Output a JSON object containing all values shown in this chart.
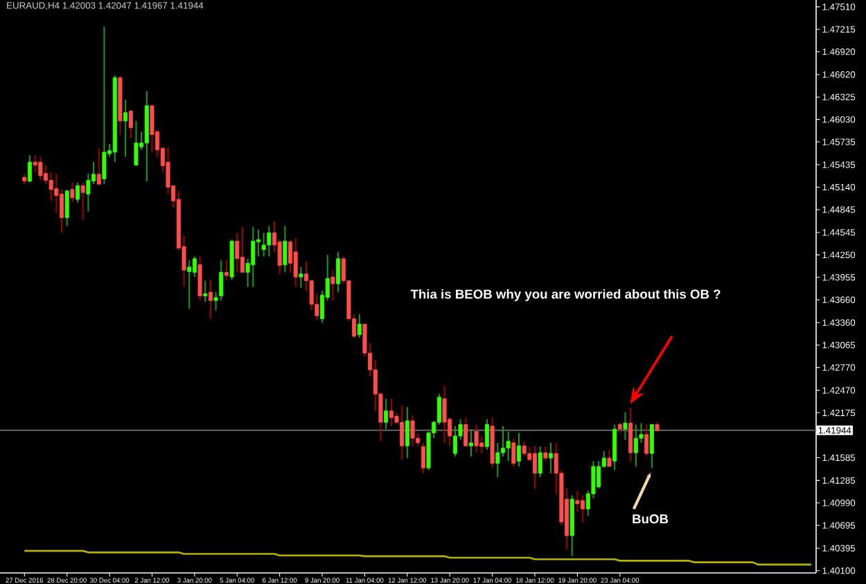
{
  "chart_data": {
    "type": "candlestick",
    "title": "EURAUD,H4  1.42003 1.42047 1.41967 1.41944",
    "categories": [
      "27 Dec 2016",
      null,
      null,
      null,
      null,
      null,
      null,
      null,
      "28 Dec 20:00",
      null,
      null,
      null,
      null,
      null,
      null,
      null,
      "30 Dec 04:00",
      null,
      null,
      null,
      null,
      null,
      null,
      null,
      "2 Jan 12:00",
      null,
      null,
      null,
      null,
      null,
      null,
      null,
      "3 Jan 20:00",
      null,
      null,
      null,
      null,
      null,
      null,
      null,
      "5 Jan 04:00",
      null,
      null,
      null,
      null,
      null,
      null,
      null,
      "6 Jan 12:00",
      null,
      null,
      null,
      null,
      null,
      null,
      null,
      "9 Jan 20:00",
      null,
      null,
      null,
      null,
      null,
      null,
      null,
      "11 Jan 04:00",
      null,
      null,
      null,
      null,
      null,
      null,
      null,
      "12 Jan 12:00",
      null,
      null,
      null,
      null,
      null,
      null,
      null,
      "13 Jan 20:00",
      null,
      null,
      null,
      null,
      null,
      null,
      null,
      "17 Jan 04:00",
      null,
      null,
      null,
      null,
      null,
      null,
      null,
      "18 Jan 12:00",
      null,
      null,
      null,
      null,
      null,
      null,
      null,
      "19 Jan 20:00",
      null,
      null,
      null,
      null,
      null,
      null,
      null,
      "23 Jan 04:00",
      null,
      null,
      null,
      null,
      null,
      null,
      null,
      null,
      null,
      null,
      null,
      null,
      null,
      null,
      null,
      null,
      null,
      null,
      null,
      null,
      null,
      null,
      null,
      null,
      null,
      null,
      null,
      null,
      null,
      null,
      null,
      null,
      null,
      null,
      null,
      null
    ],
    "ohlc": [
      [
        1.4527,
        1.4531,
        1.4518,
        1.4522
      ],
      [
        1.4522,
        1.4556,
        1.452,
        1.4547
      ],
      [
        1.4547,
        1.4556,
        1.4534,
        1.4543
      ],
      [
        1.4547,
        1.4554,
        1.4523,
        1.4529
      ],
      [
        1.4532,
        1.4543,
        1.4518,
        1.4523
      ],
      [
        1.4523,
        1.4534,
        1.4496,
        1.4511
      ],
      [
        1.4512,
        1.4532,
        1.448,
        1.4503
      ],
      [
        1.4505,
        1.4511,
        1.4454,
        1.4474
      ],
      [
        1.4474,
        1.4511,
        1.4463,
        1.4509
      ],
      [
        1.4511,
        1.452,
        1.4494,
        1.45
      ],
      [
        1.4498,
        1.452,
        1.4494,
        1.4516
      ],
      [
        1.4516,
        1.452,
        1.4471,
        1.4507
      ],
      [
        1.4505,
        1.4532,
        1.4482,
        1.4523
      ],
      [
        1.4522,
        1.4547,
        1.4518,
        1.4531
      ],
      [
        1.4531,
        1.4565,
        1.4516,
        1.4518
      ],
      [
        1.4525,
        1.4725,
        1.4518,
        1.456
      ],
      [
        1.4558,
        1.4571,
        1.4554,
        1.4562
      ],
      [
        1.456,
        1.4661,
        1.4547,
        1.4658
      ],
      [
        1.4658,
        1.466,
        1.4583,
        1.4601
      ],
      [
        1.4601,
        1.4629,
        1.4554,
        1.4612
      ],
      [
        1.4614,
        1.4616,
        1.4578,
        1.4592
      ],
      [
        1.4543,
        1.4601,
        1.4542,
        1.4572
      ],
      [
        1.4567,
        1.4587,
        1.4563,
        1.4572
      ],
      [
        1.4572,
        1.464,
        1.4522,
        1.4621
      ],
      [
        1.4621,
        1.4623,
        1.456,
        1.4583
      ],
      [
        1.4587,
        1.4589,
        1.4554,
        1.4563
      ],
      [
        1.4565,
        1.4567,
        1.4534,
        1.4542
      ],
      [
        1.4547,
        1.4567,
        1.4505,
        1.4514
      ],
      [
        1.4516,
        1.4516,
        1.4487,
        1.4496
      ],
      [
        1.4498,
        1.4509,
        1.4431,
        1.4434
      ],
      [
        1.4436,
        1.4451,
        1.4383,
        1.4405
      ],
      [
        1.4403,
        1.4418,
        1.4354,
        1.4409
      ],
      [
        1.4402,
        1.4423,
        1.4396,
        1.442
      ],
      [
        1.4412,
        1.4423,
        1.4365,
        1.4371
      ],
      [
        1.4371,
        1.4391,
        1.4363,
        1.4374
      ],
      [
        1.4376,
        1.4392,
        1.4341,
        1.4365
      ],
      [
        1.4365,
        1.4376,
        1.4352,
        1.4369
      ],
      [
        1.4371,
        1.4418,
        1.4365,
        1.4402
      ],
      [
        1.4402,
        1.4418,
        1.4392,
        1.4398
      ],
      [
        1.4396,
        1.4445,
        1.4392,
        1.4443
      ],
      [
        1.4443,
        1.4454,
        1.4402,
        1.442
      ],
      [
        1.4422,
        1.4462,
        1.4402,
        1.4402
      ],
      [
        1.4402,
        1.442,
        1.4383,
        1.4414
      ],
      [
        1.4412,
        1.4462,
        1.4383,
        1.4443
      ],
      [
        1.4442,
        1.4458,
        1.4423,
        1.4445
      ],
      [
        1.4432,
        1.4454,
        1.4423,
        1.4438
      ],
      [
        1.4438,
        1.4463,
        1.4423,
        1.4454
      ],
      [
        1.4454,
        1.4469,
        1.4429,
        1.4438
      ],
      [
        1.4442,
        1.4445,
        1.44,
        1.4411
      ],
      [
        1.4412,
        1.4463,
        1.4402,
        1.4443
      ],
      [
        1.4442,
        1.4445,
        1.4402,
        1.4414
      ],
      [
        1.4429,
        1.4447,
        1.4383,
        1.4396
      ],
      [
        1.4396,
        1.4409,
        1.4382,
        1.44
      ],
      [
        1.44,
        1.4416,
        1.4378,
        1.4391
      ],
      [
        1.4391,
        1.4392,
        1.4352,
        1.436
      ],
      [
        1.436,
        1.4374,
        1.434,
        1.4345
      ],
      [
        1.4341,
        1.4378,
        1.4336,
        1.4372
      ],
      [
        1.4369,
        1.4425,
        1.4365,
        1.4394
      ],
      [
        1.4396,
        1.4405,
        1.4365,
        1.4387
      ],
      [
        1.4387,
        1.4429,
        1.4376,
        1.442
      ],
      [
        1.442,
        1.4423,
        1.4387,
        1.4391
      ],
      [
        1.4391,
        1.4392,
        1.4338,
        1.4341
      ],
      [
        1.4341,
        1.4347,
        1.4316,
        1.4318
      ],
      [
        1.432,
        1.4347,
        1.4316,
        1.4334
      ],
      [
        1.4334,
        1.4334,
        1.4291,
        1.4296
      ],
      [
        1.4296,
        1.4309,
        1.4265,
        1.4274
      ],
      [
        1.4274,
        1.4287,
        1.422,
        1.4242
      ],
      [
        1.4242,
        1.4245,
        1.418,
        1.4205
      ],
      [
        1.4205,
        1.4236,
        1.4196,
        1.422
      ],
      [
        1.422,
        1.4236,
        1.42,
        1.4211
      ],
      [
        1.4213,
        1.4218,
        1.4202,
        1.4205
      ],
      [
        1.4205,
        1.4227,
        1.4156,
        1.4174
      ],
      [
        1.4174,
        1.4225,
        1.4158,
        1.4207
      ],
      [
        1.4207,
        1.4214,
        1.4173,
        1.4184
      ],
      [
        1.4184,
        1.4191,
        1.4174,
        1.4178
      ],
      [
        1.4173,
        1.4178,
        1.4138,
        1.4145
      ],
      [
        1.4145,
        1.4193,
        1.4142,
        1.4191
      ],
      [
        1.4191,
        1.4207,
        1.4184,
        1.4205
      ],
      [
        1.4205,
        1.4242,
        1.4202,
        1.4238
      ],
      [
        1.4236,
        1.4253,
        1.4178,
        1.4205
      ],
      [
        1.4209,
        1.4211,
        1.4174,
        1.4187
      ],
      [
        1.4164,
        1.42,
        1.416,
        1.4187
      ],
      [
        1.4187,
        1.4209,
        1.4182,
        1.4202
      ],
      [
        1.4202,
        1.4211,
        1.4173,
        1.4174
      ],
      [
        1.4174,
        1.4196,
        1.416,
        1.4178
      ],
      [
        1.4193,
        1.4202,
        1.4165,
        1.4174
      ],
      [
        1.4178,
        1.4187,
        1.4164,
        1.4173
      ],
      [
        1.4173,
        1.4209,
        1.4169,
        1.4202
      ],
      [
        1.42,
        1.4211,
        1.4145,
        1.4151
      ],
      [
        1.4151,
        1.4178,
        1.4133,
        1.4165
      ],
      [
        1.4165,
        1.42,
        1.416,
        1.4171
      ],
      [
        1.4171,
        1.4193,
        1.4154,
        1.418
      ],
      [
        1.4178,
        1.4184,
        1.4147,
        1.4151
      ],
      [
        1.4154,
        1.4191,
        1.4147,
        1.4174
      ],
      [
        1.4174,
        1.418,
        1.416,
        1.4164
      ],
      [
        1.4164,
        1.4173,
        1.4154,
        1.4156
      ],
      [
        1.4164,
        1.4174,
        1.4118,
        1.4138
      ],
      [
        1.4138,
        1.4173,
        1.4133,
        1.4165
      ],
      [
        1.4165,
        1.4173,
        1.4154,
        1.4158
      ],
      [
        1.4158,
        1.4178,
        1.4138,
        1.4164
      ],
      [
        1.4164,
        1.4178,
        1.4111,
        1.4138
      ],
      [
        1.4138,
        1.4142,
        1.4069,
        1.4074
      ],
      [
        1.4104,
        1.4118,
        1.4038,
        1.4056
      ],
      [
        1.4056,
        1.4109,
        1.4029,
        1.4104
      ],
      [
        1.4102,
        1.4115,
        1.4087,
        1.4098
      ],
      [
        1.4102,
        1.4109,
        1.4074,
        1.4091
      ],
      [
        1.4091,
        1.4115,
        1.4082,
        1.4111
      ],
      [
        1.4111,
        1.4154,
        1.4105,
        1.4147
      ],
      [
        1.412,
        1.4154,
        1.4118,
        1.4147
      ],
      [
        1.4147,
        1.4167,
        1.4145,
        1.4158
      ],
      [
        1.4158,
        1.4169,
        1.4147,
        1.4147
      ],
      [
        1.4154,
        1.4202,
        1.4142,
        1.4196
      ],
      [
        1.4202,
        1.4205,
        1.4191,
        1.4196
      ],
      [
        1.4196,
        1.4218,
        1.4182,
        1.4204
      ],
      [
        1.4204,
        1.4224,
        1.4153,
        1.4165
      ],
      [
        1.4165,
        1.4202,
        1.4147,
        1.4184
      ],
      [
        1.4184,
        1.4204,
        1.4178,
        1.4189
      ],
      [
        1.4189,
        1.4202,
        1.416,
        1.4164
      ],
      [
        1.4164,
        1.4202,
        1.4145,
        1.4202
      ],
      [
        1.4202,
        1.4205,
        1.4193,
        1.4194
      ],
      null,
      null,
      null,
      null,
      null,
      null,
      null,
      null,
      null,
      null,
      null,
      null,
      null,
      null,
      null,
      null,
      null,
      null,
      null,
      null,
      null,
      null,
      null,
      null,
      null,
      null,
      null,
      null,
      null
    ],
    "series": [
      {
        "type": "line",
        "color": "#b4b400",
        "values": [
          1.4036,
          1.4036,
          1.4036,
          1.4036,
          1.4036,
          1.4036,
          1.4036,
          1.4036,
          1.4036,
          1.4036,
          1.4036,
          1.4036,
          1.4034,
          1.4034,
          1.4034,
          1.4034,
          1.4034,
          1.4034,
          1.4034,
          1.4034,
          1.4034,
          1.4034,
          1.4034,
          1.4034,
          1.4034,
          1.4034,
          1.4034,
          1.4034,
          1.4034,
          1.4034,
          1.4032,
          1.4032,
          1.4032,
          1.4032,
          1.4032,
          1.4032,
          1.4032,
          1.4032,
          1.4032,
          1.4032,
          1.4032,
          1.4032,
          1.4032,
          1.4032,
          1.4032,
          1.4032,
          1.4032,
          1.4032,
          1.403,
          1.403,
          1.403,
          1.403,
          1.403,
          1.403,
          1.403,
          1.403,
          1.403,
          1.403,
          1.403,
          1.403,
          1.403,
          1.403,
          1.403,
          1.403,
          1.4029,
          1.4029,
          1.4029,
          1.4029,
          1.4029,
          1.4029,
          1.4029,
          1.4029,
          1.4029,
          1.4029,
          1.4029,
          1.4029,
          1.4029,
          1.4029,
          1.4029,
          1.4029,
          1.4027,
          1.4027,
          1.4027,
          1.4027,
          1.4027,
          1.4027,
          1.4027,
          1.4027,
          1.4027,
          1.4027,
          1.4027,
          1.4027,
          1.4027,
          1.4027,
          1.4027,
          1.4027,
          1.4025,
          1.4025,
          1.4025,
          1.4025,
          1.4025,
          1.4025,
          1.4025,
          1.4025,
          1.4025,
          1.4025,
          1.4025,
          1.4025,
          1.4025,
          1.4025,
          1.4025,
          1.4025,
          1.4023,
          1.4023,
          1.4023,
          1.4023,
          1.4023,
          1.4023,
          1.4023,
          1.4023,
          1.4023,
          1.4023,
          1.4023,
          1.4023,
          1.4023,
          1.4023,
          1.4021,
          1.4021,
          1.4021,
          1.4021,
          1.4021,
          1.4021,
          1.4021,
          1.4021,
          1.4021,
          1.4021,
          1.4021,
          1.4021,
          1.4018,
          1.4018,
          1.4018,
          1.4018,
          1.4018,
          1.4018,
          1.4018,
          1.4018,
          1.4018,
          1.4018,
          1.4018
        ]
      }
    ],
    "ylim": [
      1.4007,
      1.476
    ],
    "yticks": [
      {
        "value": 1.4751,
        "label": "1.47510"
      },
      {
        "value": 1.47215,
        "label": "1.47215"
      },
      {
        "value": 1.4692,
        "label": "1.46920"
      },
      {
        "value": 1.4662,
        "label": "1.46620"
      },
      {
        "value": 1.46325,
        "label": "1.46325"
      },
      {
        "value": 1.4603,
        "label": "1.46030"
      },
      {
        "value": 1.45735,
        "label": "1.45735"
      },
      {
        "value": 1.45435,
        "label": "1.45435"
      },
      {
        "value": 1.4514,
        "label": "1.45140"
      },
      {
        "value": 1.44845,
        "label": "1.44845"
      },
      {
        "value": 1.44545,
        "label": "1.44545"
      },
      {
        "value": 1.4425,
        "label": "1.44250"
      },
      {
        "value": 1.43955,
        "label": "1.43955"
      },
      {
        "value": 1.4366,
        "label": "1.43660"
      },
      {
        "value": 1.4336,
        "label": "1.43360"
      },
      {
        "value": 1.43065,
        "label": "1.43065"
      },
      {
        "value": 1.4277,
        "label": "1.42770"
      },
      {
        "value": 1.4247,
        "label": "1.42470"
      },
      {
        "value": 1.42175,
        "label": "1.42175"
      },
      {
        "value": 1.41585,
        "label": "1.41585"
      },
      {
        "value": 1.41285,
        "label": "1.41285"
      },
      {
        "value": 1.4099,
        "label": "1.40990"
      },
      {
        "value": 1.40695,
        "label": "1.40695"
      },
      {
        "value": 1.40395,
        "label": "1.40395"
      },
      {
        "value": 1.401,
        "label": "1.40100"
      }
    ],
    "ref_lines": [
      {
        "axis": "y",
        "value": 1.41944,
        "label": "1.41944",
        "color": "#5a5a5a"
      }
    ],
    "annotations": [
      "Thia is BEOB why you are worried about this OB ?",
      "BuOB"
    ]
  }
}
